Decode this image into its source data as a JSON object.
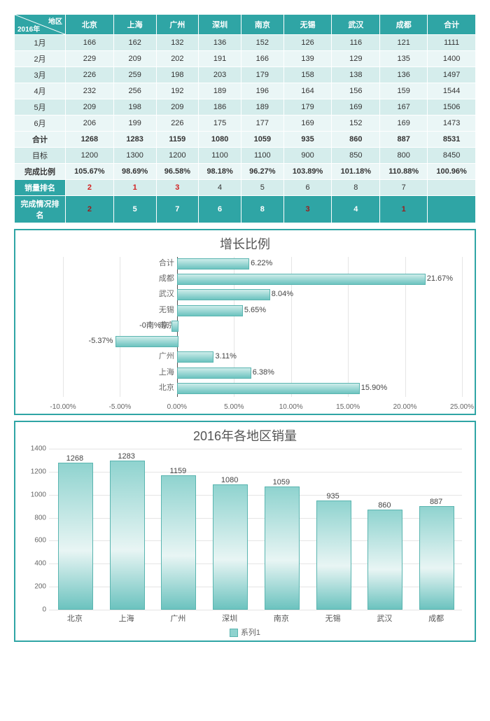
{
  "table": {
    "corner_top": "地区",
    "corner_bottom": "2016年",
    "columns": [
      "北京",
      "上海",
      "广州",
      "深圳",
      "南京",
      "无锡",
      "武汉",
      "成都",
      "合计"
    ],
    "months": [
      "1月",
      "2月",
      "3月",
      "4月",
      "5月",
      "6月"
    ],
    "data": [
      [
        166,
        162,
        132,
        136,
        152,
        126,
        116,
        121,
        1111
      ],
      [
        229,
        209,
        202,
        191,
        166,
        139,
        129,
        135,
        1400
      ],
      [
        226,
        259,
        198,
        203,
        179,
        158,
        138,
        136,
        1497
      ],
      [
        232,
        256,
        192,
        189,
        196,
        164,
        156,
        159,
        1544
      ],
      [
        209,
        198,
        209,
        186,
        189,
        179,
        169,
        167,
        1506
      ],
      [
        206,
        199,
        226,
        175,
        177,
        169,
        152,
        169,
        1473
      ]
    ],
    "total_label": "合计",
    "total": [
      1268,
      1283,
      1159,
      1080,
      1059,
      935,
      860,
      887,
      8531
    ],
    "target_label": "目标",
    "target": [
      1200,
      1300,
      1200,
      1100,
      1100,
      900,
      850,
      800,
      8450
    ],
    "ratio_label": "完成比例",
    "ratio": [
      "105.67%",
      "98.69%",
      "96.58%",
      "98.18%",
      "96.27%",
      "103.89%",
      "101.18%",
      "110.88%",
      "100.96%"
    ],
    "sales_rank_label": "销量排名",
    "sales_rank": [
      "2",
      "1",
      "3",
      "4",
      "5",
      "6",
      "8",
      "7",
      ""
    ],
    "sales_rank_red": [
      true,
      true,
      true,
      false,
      false,
      false,
      false,
      false,
      false
    ],
    "done_rank_label": "完成情况排名",
    "done_rank": [
      "2",
      "5",
      "7",
      "6",
      "8",
      "3",
      "4",
      "1",
      ""
    ],
    "done_rank_red": [
      true,
      false,
      false,
      false,
      false,
      true,
      false,
      true,
      false
    ]
  },
  "chart1": {
    "type": "bar-horizontal",
    "title": "增长比例",
    "categories": [
      "合计",
      "成都",
      "武汉",
      "无锡",
      "南京",
      "深圳",
      "广州",
      "上海",
      "北京"
    ],
    "values": [
      6.22,
      21.67,
      8.04,
      5.65,
      -0.5,
      -5.37,
      3.11,
      6.38,
      15.9
    ],
    "labels": [
      "6.22%",
      "21.67%",
      "8.04%",
      "5.65%",
      "-0南%京",
      "-5.37%",
      "3.11%",
      "6.38%",
      "15.90%"
    ],
    "xmin": -10,
    "xmax": 25,
    "xtick_step": 5,
    "xtick_fmt": [
      "-10.00%",
      "-5.00%",
      "0.00%",
      "5.00%",
      "10.00%",
      "15.00%",
      "20.00%",
      "25.00%"
    ],
    "bar_color_top": "#cdecea",
    "bar_color_bottom": "#6cc3bf",
    "border_color": "#5ab5b0",
    "grid_color": "#e5e5e5",
    "background": "#ffffff",
    "title_fontsize": 18
  },
  "chart2": {
    "type": "bar-vertical",
    "title": "2016年各地区销量",
    "categories": [
      "北京",
      "上海",
      "广州",
      "深圳",
      "南京",
      "无锡",
      "武汉",
      "成都"
    ],
    "values": [
      1268,
      1283,
      1159,
      1080,
      1059,
      935,
      860,
      887
    ],
    "ymin": 0,
    "ymax": 1400,
    "ytick_step": 200,
    "bar_color_top": "#8fd3cf",
    "bar_color_bottom": "#6cc3bf",
    "border_color": "#5ab5b0",
    "grid_color": "#e5e5e5",
    "background": "#ffffff",
    "legend_label": "系列1",
    "title_fontsize": 18
  }
}
